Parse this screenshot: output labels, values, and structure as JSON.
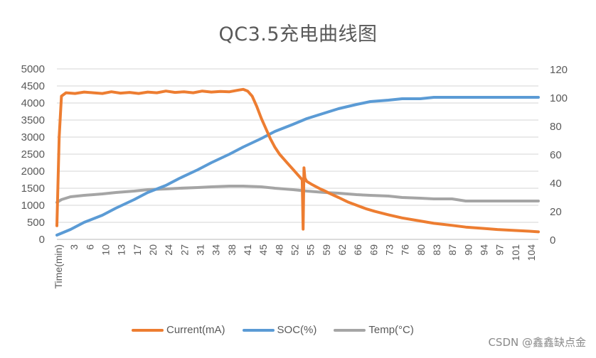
{
  "chart_data": {
    "type": "line",
    "title": "QC3.5充电曲线图",
    "xlabel": "Time(min)",
    "ylabel_left": "",
    "ylabel_right": "",
    "x_tick_labels": [
      "Time(min)",
      "3",
      "6",
      "10",
      "13",
      "17",
      "20",
      "24",
      "27",
      "31",
      "34",
      "38",
      "41",
      "45",
      "48",
      "52",
      "55",
      "59",
      "62",
      "66",
      "69",
      "73",
      "76",
      "80",
      "83",
      "87",
      "90",
      "94",
      "97",
      "101",
      "104"
    ],
    "y_left_ticks": [
      0,
      500,
      1000,
      1500,
      2000,
      2500,
      3000,
      3500,
      4000,
      4500,
      5000
    ],
    "y_right_ticks": [
      0,
      20,
      40,
      60,
      80,
      100,
      120
    ],
    "ylim_left": [
      0,
      5000
    ],
    "ylim_right": [
      0,
      120
    ],
    "xlim": [
      0,
      106
    ],
    "grid": true,
    "legend_position": "bottom",
    "series": [
      {
        "name": "Current(mA)",
        "axis": "left",
        "color": "#ED7D31",
        "x": [
          0,
          0.5,
          1,
          2,
          4,
          6,
          8,
          10,
          12,
          14,
          16,
          18,
          20,
          22,
          24,
          26,
          28,
          30,
          32,
          34,
          36,
          38,
          40,
          41,
          42,
          43,
          44,
          45,
          46,
          47,
          48,
          49,
          50,
          51,
          52,
          53,
          54,
          54.2,
          54.4,
          54.6,
          55,
          56,
          57,
          58,
          59,
          60,
          62,
          64,
          66,
          68,
          70,
          73,
          76,
          80,
          83,
          87,
          90,
          94,
          97,
          101,
          104,
          106
        ],
        "values": [
          400,
          3000,
          4200,
          4300,
          4280,
          4320,
          4300,
          4280,
          4330,
          4290,
          4310,
          4280,
          4320,
          4300,
          4350,
          4310,
          4330,
          4300,
          4350,
          4320,
          4340,
          4330,
          4380,
          4400,
          4350,
          4200,
          3900,
          3550,
          3250,
          2950,
          2700,
          2500,
          2350,
          2200,
          2050,
          1900,
          1750,
          300,
          2100,
          1800,
          1700,
          1620,
          1550,
          1480,
          1420,
          1350,
          1230,
          1100,
          1000,
          900,
          820,
          720,
          630,
          540,
          470,
          410,
          360,
          320,
          290,
          260,
          240,
          220
        ]
      },
      {
        "name": "SOC(%)",
        "axis": "right",
        "color": "#5B9BD5",
        "x": [
          0,
          3,
          6,
          10,
          13,
          17,
          20,
          24,
          27,
          31,
          34,
          38,
          41,
          45,
          48,
          52,
          55,
          59,
          62,
          66,
          69,
          73,
          76,
          80,
          83,
          87,
          90,
          94,
          97,
          101,
          104,
          106
        ],
        "values": [
          3,
          7,
          12,
          17,
          22,
          28,
          33,
          38,
          43,
          49,
          54,
          60,
          65,
          71,
          76,
          81,
          85,
          89,
          92,
          95,
          97,
          98,
          99,
          99,
          100,
          100,
          100,
          100,
          100,
          100,
          100,
          100
        ]
      },
      {
        "name": "Temp(°C)",
        "axis": "right",
        "color": "#A5A5A5",
        "x": [
          0,
          1,
          3,
          6,
          10,
          13,
          17,
          20,
          24,
          27,
          31,
          34,
          38,
          41,
          45,
          48,
          52,
          55,
          59,
          62,
          66,
          69,
          73,
          76,
          80,
          83,
          87,
          90,
          94,
          97,
          101,
          104,
          106
        ],
        "values": [
          26,
          28,
          30,
          31,
          32,
          33,
          34,
          35,
          35.5,
          36,
          36.5,
          37,
          37.5,
          37.5,
          37,
          36,
          35,
          34,
          33,
          32.5,
          31.5,
          31,
          30.5,
          29.5,
          29,
          28.5,
          28.5,
          27,
          27,
          27,
          27,
          27,
          27
        ]
      }
    ]
  },
  "watermark": "CSDN @鑫鑫缺点金"
}
